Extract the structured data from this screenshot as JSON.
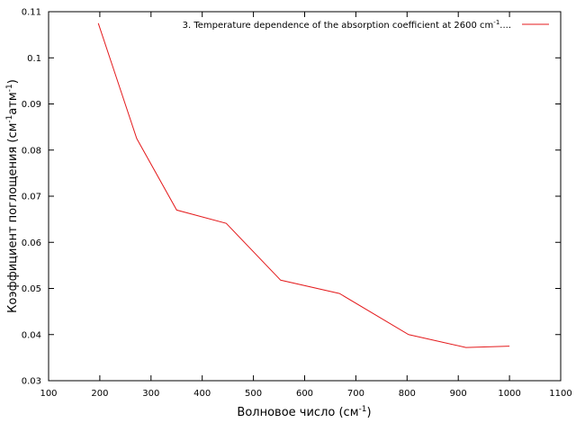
{
  "chart_data": {
    "type": "line",
    "title": "",
    "xlabel": {
      "base": "Волновое число (см",
      "sup": "-1",
      "tail": ")"
    },
    "ylabel": {
      "p1": "Коэффициент поглощения (см",
      "sup1": "-1",
      "p2": "атм",
      "sup2": "-1",
      "tail": ")"
    },
    "xlim": [
      100,
      1100
    ],
    "ylim": [
      0.03,
      0.11
    ],
    "xticks": [
      100,
      200,
      300,
      400,
      500,
      600,
      700,
      800,
      900,
      1000,
      1100
    ],
    "xtick_labels": [
      "100",
      "200",
      "300",
      "400",
      "500",
      "600",
      "700",
      "800",
      "900",
      "1000",
      "1100"
    ],
    "yticks": [
      0.03,
      0.04,
      0.05,
      0.06,
      0.07,
      0.08,
      0.09,
      0.1,
      0.11
    ],
    "ytick_labels": [
      "0.03",
      "0.04",
      "0.05",
      "0.06",
      "0.07",
      "0.08",
      "0.09",
      "0.1",
      "0.11"
    ],
    "grid": false,
    "legend_position": "top-right",
    "series": [
      {
        "name": {
          "base": "3. Temperature dependence of the absorption coefficient at 2600 cm",
          "sup": "-1",
          "tail": "...."
        },
        "color": "#e41a1c",
        "x": [
          197,
          272,
          350,
          447,
          553,
          668,
          803,
          915,
          1000
        ],
        "y": [
          0.1075,
          0.0825,
          0.067,
          0.0641,
          0.0518,
          0.0489,
          0.04,
          0.0372,
          0.0375
        ]
      }
    ]
  }
}
